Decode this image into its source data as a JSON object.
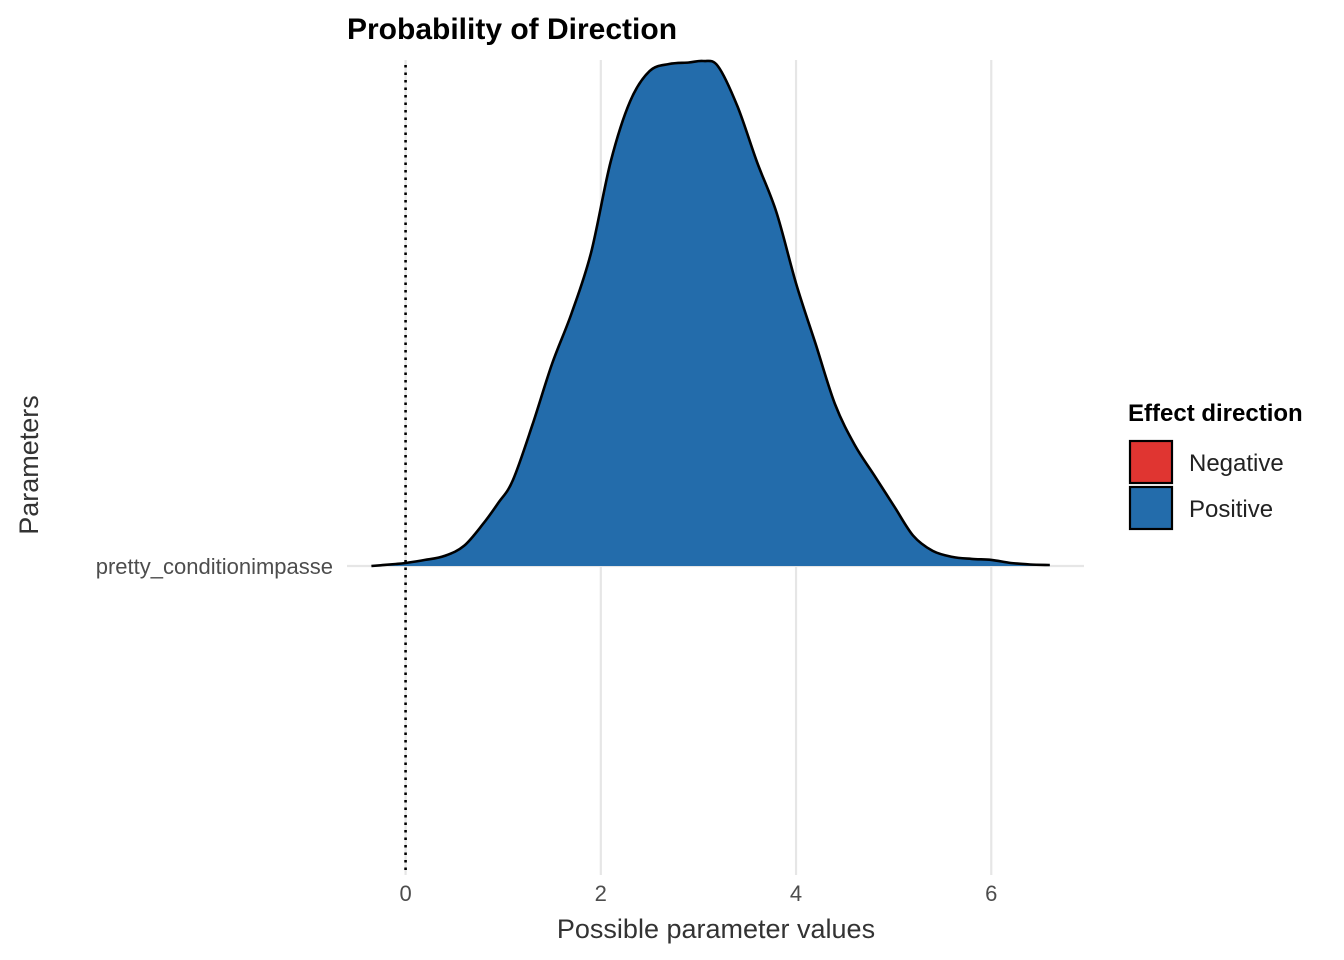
{
  "chart_data": {
    "type": "area",
    "title": "Probability of Direction",
    "xlabel": "Possible parameter values",
    "ylabel": "Parameters",
    "xlim": [
      -0.6,
      6.95
    ],
    "x_ticks": [
      0,
      2,
      4,
      6
    ],
    "x_tick_labels": [
      "0",
      "2",
      "4",
      "6"
    ],
    "categories": [
      "pretty_conditionimpasse"
    ],
    "reference_line_x": 0,
    "grid": "vertical major gridlines",
    "legend": {
      "title": "Effect direction",
      "placement": "right",
      "entries": [
        {
          "name": "Negative",
          "color": "#E03531"
        },
        {
          "name": "Positive",
          "color": "#236CAB"
        }
      ]
    },
    "series": [
      {
        "name": "Positive",
        "color": "#236CAB",
        "x": [
          -0.35,
          -0.1,
          0.0,
          0.2,
          0.4,
          0.6,
          0.8,
          0.95,
          1.1,
          1.3,
          1.5,
          1.7,
          1.9,
          2.1,
          2.3,
          2.5,
          2.7,
          2.9,
          3.05,
          3.2,
          3.4,
          3.6,
          3.8,
          4.0,
          4.2,
          4.4,
          4.6,
          4.8,
          5.0,
          5.2,
          5.4,
          5.6,
          5.8,
          6.0,
          6.2,
          6.4,
          6.6
        ],
        "density": [
          0.0,
          0.004,
          0.006,
          0.012,
          0.02,
          0.04,
          0.085,
          0.125,
          0.17,
          0.28,
          0.4,
          0.5,
          0.62,
          0.8,
          0.92,
          0.98,
          0.994,
          0.997,
          1.0,
          0.99,
          0.91,
          0.8,
          0.7,
          0.56,
          0.44,
          0.32,
          0.24,
          0.18,
          0.12,
          0.06,
          0.03,
          0.018,
          0.014,
          0.012,
          0.006,
          0.003,
          0.002
        ]
      }
    ]
  }
}
